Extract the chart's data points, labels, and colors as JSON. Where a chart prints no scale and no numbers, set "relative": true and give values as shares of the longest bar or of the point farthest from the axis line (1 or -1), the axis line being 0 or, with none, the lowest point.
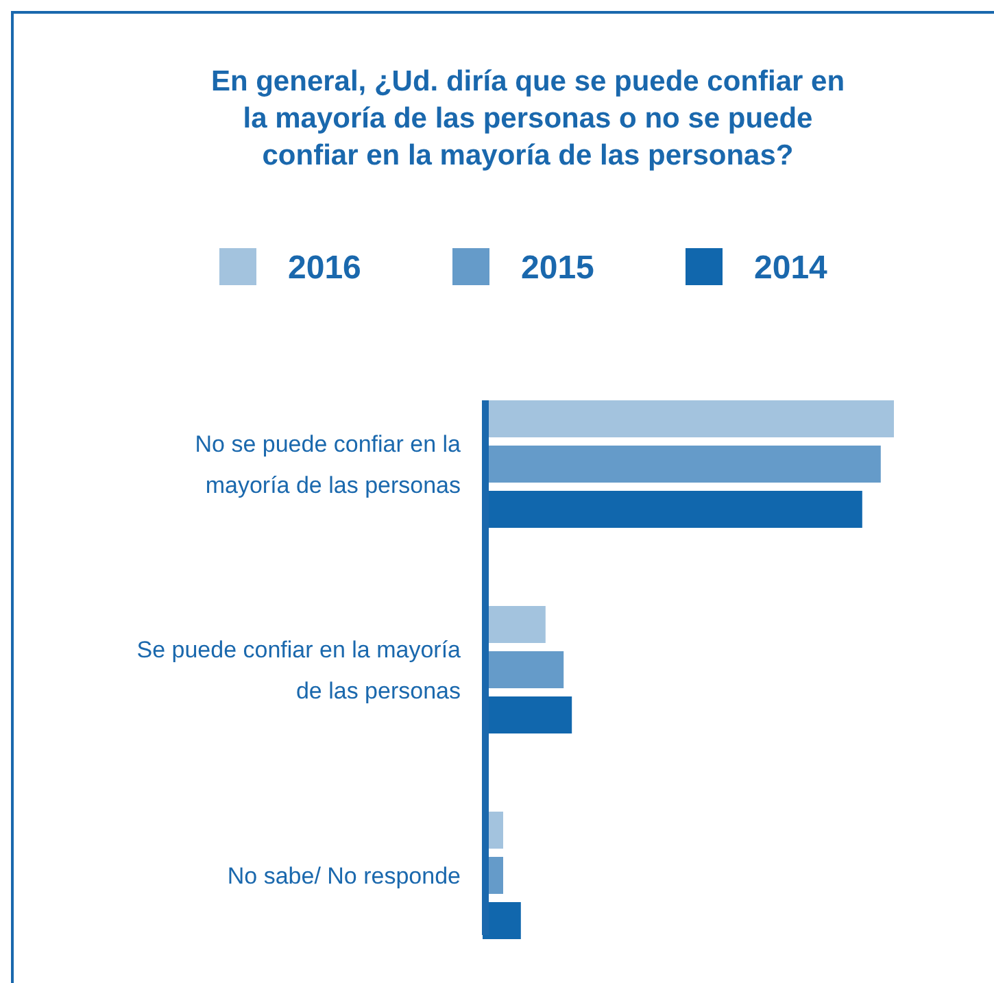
{
  "chart_data": {
    "type": "bar",
    "orientation": "horizontal",
    "relative": true,
    "title": "En general, ¿Ud. diría que se puede confiar en la mayoría de las personas o no se puede confiar en la mayoría de las personas?",
    "categories": [
      "No se puede confiar en la mayoría de las personas",
      "Se puede confiar en la mayoría de las personas",
      "No sabe/ No responde"
    ],
    "series": [
      {
        "name": "2016",
        "color": "#a3c3de",
        "values": [
          1,
          0.153,
          0.05
        ]
      },
      {
        "name": "2015",
        "color": "#659bc9",
        "values": [
          0.968,
          0.197,
          0.05
        ]
      },
      {
        "name": "2014",
        "color": "#1167ad",
        "values": [
          0.923,
          0.217,
          0.093
        ]
      }
    ],
    "legend": "top"
  }
}
